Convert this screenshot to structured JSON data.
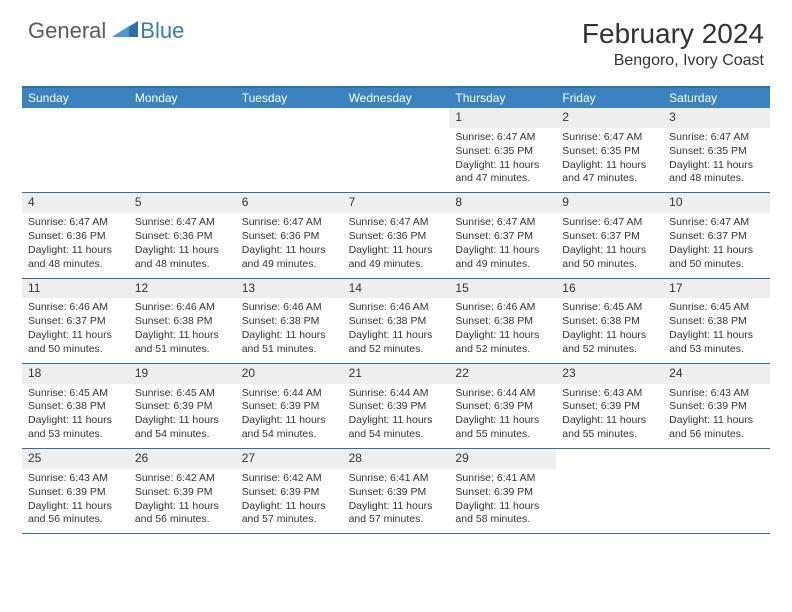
{
  "logo": {
    "general": "General",
    "blue": "Blue"
  },
  "title": "February 2024",
  "location": "Bengoro, Ivory Coast",
  "colors": {
    "header_bg": "#3b83c0",
    "header_text": "#ffffff",
    "row_border": "#2f6fa8",
    "day_header_bg": "#eeeeee",
    "text": "#333333",
    "logo_gray": "#5a5a5a",
    "logo_blue": "#3a7ab8",
    "background": "#ffffff"
  },
  "dow": [
    "Sunday",
    "Monday",
    "Tuesday",
    "Wednesday",
    "Thursday",
    "Friday",
    "Saturday"
  ],
  "weeks": [
    [
      {
        "empty": true
      },
      {
        "empty": true
      },
      {
        "empty": true
      },
      {
        "empty": true
      },
      {
        "d": "1",
        "sr": "6:47 AM",
        "ss": "6:35 PM",
        "dl": "11 hours and 47 minutes."
      },
      {
        "d": "2",
        "sr": "6:47 AM",
        "ss": "6:35 PM",
        "dl": "11 hours and 47 minutes."
      },
      {
        "d": "3",
        "sr": "6:47 AM",
        "ss": "6:35 PM",
        "dl": "11 hours and 48 minutes."
      }
    ],
    [
      {
        "d": "4",
        "sr": "6:47 AM",
        "ss": "6:36 PM",
        "dl": "11 hours and 48 minutes."
      },
      {
        "d": "5",
        "sr": "6:47 AM",
        "ss": "6:36 PM",
        "dl": "11 hours and 48 minutes."
      },
      {
        "d": "6",
        "sr": "6:47 AM",
        "ss": "6:36 PM",
        "dl": "11 hours and 49 minutes."
      },
      {
        "d": "7",
        "sr": "6:47 AM",
        "ss": "6:36 PM",
        "dl": "11 hours and 49 minutes."
      },
      {
        "d": "8",
        "sr": "6:47 AM",
        "ss": "6:37 PM",
        "dl": "11 hours and 49 minutes."
      },
      {
        "d": "9",
        "sr": "6:47 AM",
        "ss": "6:37 PM",
        "dl": "11 hours and 50 minutes."
      },
      {
        "d": "10",
        "sr": "6:47 AM",
        "ss": "6:37 PM",
        "dl": "11 hours and 50 minutes."
      }
    ],
    [
      {
        "d": "11",
        "sr": "6:46 AM",
        "ss": "6:37 PM",
        "dl": "11 hours and 50 minutes."
      },
      {
        "d": "12",
        "sr": "6:46 AM",
        "ss": "6:38 PM",
        "dl": "11 hours and 51 minutes."
      },
      {
        "d": "13",
        "sr": "6:46 AM",
        "ss": "6:38 PM",
        "dl": "11 hours and 51 minutes."
      },
      {
        "d": "14",
        "sr": "6:46 AM",
        "ss": "6:38 PM",
        "dl": "11 hours and 52 minutes."
      },
      {
        "d": "15",
        "sr": "6:46 AM",
        "ss": "6:38 PM",
        "dl": "11 hours and 52 minutes."
      },
      {
        "d": "16",
        "sr": "6:45 AM",
        "ss": "6:38 PM",
        "dl": "11 hours and 52 minutes."
      },
      {
        "d": "17",
        "sr": "6:45 AM",
        "ss": "6:38 PM",
        "dl": "11 hours and 53 minutes."
      }
    ],
    [
      {
        "d": "18",
        "sr": "6:45 AM",
        "ss": "6:38 PM",
        "dl": "11 hours and 53 minutes."
      },
      {
        "d": "19",
        "sr": "6:45 AM",
        "ss": "6:39 PM",
        "dl": "11 hours and 54 minutes."
      },
      {
        "d": "20",
        "sr": "6:44 AM",
        "ss": "6:39 PM",
        "dl": "11 hours and 54 minutes."
      },
      {
        "d": "21",
        "sr": "6:44 AM",
        "ss": "6:39 PM",
        "dl": "11 hours and 54 minutes."
      },
      {
        "d": "22",
        "sr": "6:44 AM",
        "ss": "6:39 PM",
        "dl": "11 hours and 55 minutes."
      },
      {
        "d": "23",
        "sr": "6:43 AM",
        "ss": "6:39 PM",
        "dl": "11 hours and 55 minutes."
      },
      {
        "d": "24",
        "sr": "6:43 AM",
        "ss": "6:39 PM",
        "dl": "11 hours and 56 minutes."
      }
    ],
    [
      {
        "d": "25",
        "sr": "6:43 AM",
        "ss": "6:39 PM",
        "dl": "11 hours and 56 minutes."
      },
      {
        "d": "26",
        "sr": "6:42 AM",
        "ss": "6:39 PM",
        "dl": "11 hours and 56 minutes."
      },
      {
        "d": "27",
        "sr": "6:42 AM",
        "ss": "6:39 PM",
        "dl": "11 hours and 57 minutes."
      },
      {
        "d": "28",
        "sr": "6:41 AM",
        "ss": "6:39 PM",
        "dl": "11 hours and 57 minutes."
      },
      {
        "d": "29",
        "sr": "6:41 AM",
        "ss": "6:39 PM",
        "dl": "11 hours and 58 minutes."
      },
      {
        "empty": true
      },
      {
        "empty": true
      }
    ]
  ],
  "labels": {
    "sunrise": "Sunrise:",
    "sunset": "Sunset:",
    "daylight": "Daylight:"
  }
}
